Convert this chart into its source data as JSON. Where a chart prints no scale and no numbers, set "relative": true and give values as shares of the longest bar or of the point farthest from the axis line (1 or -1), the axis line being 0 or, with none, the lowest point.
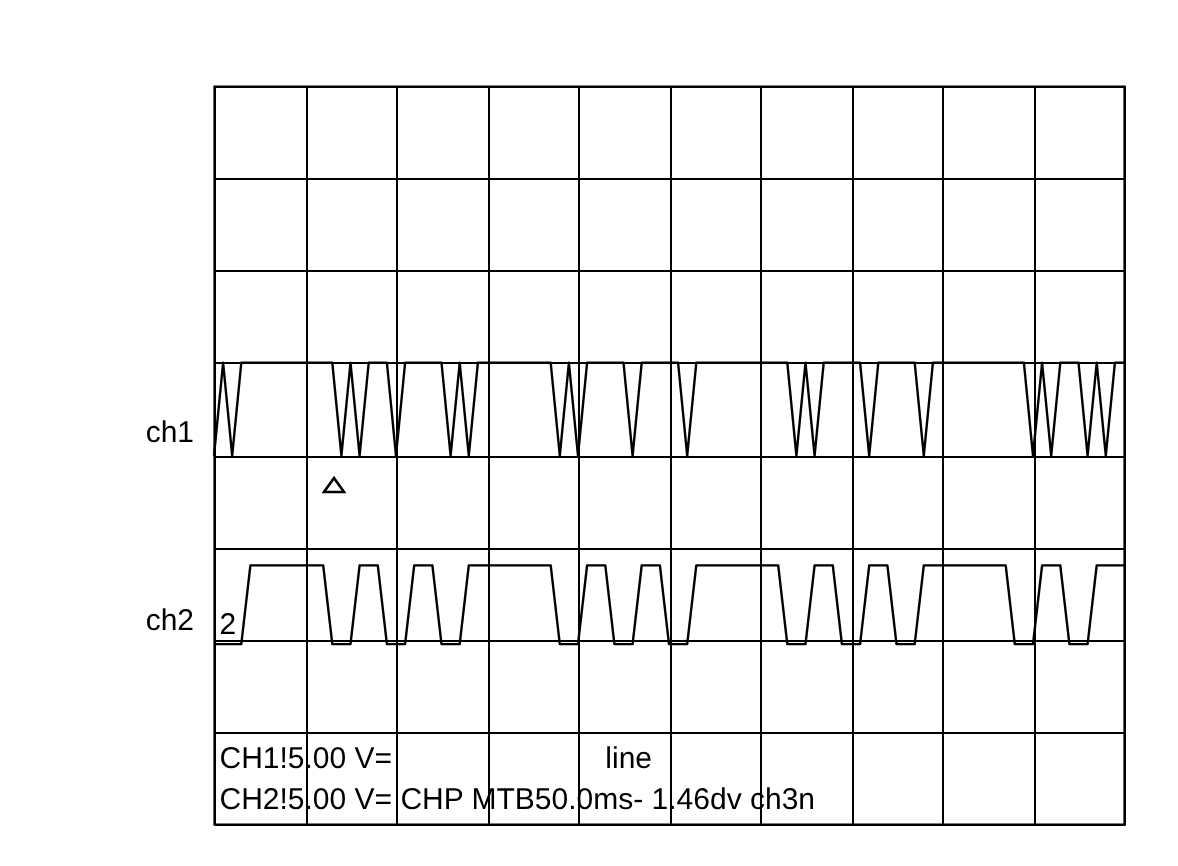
{
  "chart_data": {
    "type": "line",
    "relative": true,
    "grid": true,
    "categories": [
      null,
      null,
      null,
      null,
      null,
      null,
      null,
      null,
      null,
      null,
      null,
      null,
      null,
      null,
      null,
      null,
      null,
      null,
      null,
      null,
      null,
      null,
      null,
      null,
      null,
      null,
      null,
      null,
      null,
      null,
      null,
      null,
      null,
      null,
      null,
      null,
      null,
      null,
      null,
      null,
      null,
      null,
      null,
      null,
      null,
      null,
      null,
      null,
      null,
      null,
      null,
      null,
      null,
      null,
      null,
      null,
      null,
      null,
      null,
      null,
      null,
      null,
      null,
      null,
      null,
      null,
      null,
      null,
      null,
      null,
      null,
      null,
      null,
      null,
      null,
      null,
      null,
      null,
      null,
      null,
      null,
      null,
      null,
      null,
      null,
      null,
      null,
      null,
      null,
      null,
      null,
      null,
      null,
      null,
      null,
      null,
      null,
      null,
      null,
      null,
      null
    ],
    "series": [
      {
        "name": "ch1",
        "color": "#000000",
        "values": [
          0.67,
          1,
          0.67,
          1,
          1,
          1,
          1,
          1,
          1,
          1,
          1,
          1,
          1,
          1,
          0.67,
          1,
          0.67,
          1,
          1,
          1,
          0.67,
          1,
          1,
          1,
          1,
          1,
          0.67,
          1,
          0.67,
          1,
          1,
          1,
          1,
          1,
          1,
          1,
          1,
          1,
          0.67,
          1,
          0.67,
          1,
          1,
          1,
          1,
          1,
          0.67,
          1,
          1,
          1,
          1,
          1,
          0.67,
          1,
          1,
          1,
          1,
          1,
          1,
          1,
          1,
          1,
          1,
          1,
          0.67,
          1,
          0.67,
          1,
          1,
          1,
          1,
          1,
          0.67,
          1,
          1,
          1,
          1,
          1,
          0.67,
          1,
          1,
          1,
          1,
          1,
          1,
          1,
          1,
          1,
          1,
          1,
          0.67,
          1,
          0.67,
          1,
          1,
          1,
          0.67,
          1,
          0.67,
          1,
          1
        ]
      },
      {
        "name": "ch2",
        "color": "#000000",
        "values": [
          0,
          0,
          0,
          0,
          0.28,
          0.28,
          0.28,
          0.28,
          0.28,
          0.28,
          0.28,
          0.28,
          0.28,
          0,
          0,
          0,
          0.28,
          0.28,
          0.28,
          0,
          0,
          0,
          0.28,
          0.28,
          0.28,
          0,
          0,
          0,
          0.28,
          0.28,
          0.28,
          0.28,
          0.28,
          0.28,
          0.28,
          0.28,
          0.28,
          0.28,
          0,
          0,
          0,
          0.28,
          0.28,
          0.28,
          0,
          0,
          0,
          0.28,
          0.28,
          0.28,
          0,
          0,
          0,
          0.28,
          0.28,
          0.28,
          0.28,
          0.28,
          0.28,
          0.28,
          0.28,
          0.28,
          0.28,
          0,
          0,
          0,
          0.28,
          0.28,
          0.28,
          0,
          0,
          0,
          0.28,
          0.28,
          0.28,
          0,
          0,
          0,
          0.28,
          0.28,
          0.28,
          0.28,
          0.28,
          0.28,
          0.28,
          0.28,
          0.28,
          0.28,
          0,
          0,
          0,
          0.28,
          0.28,
          0.28,
          0,
          0,
          0,
          0.28,
          0.28,
          0.28,
          0.28
        ]
      }
    ],
    "annotations": [
      {
        "text": "2",
        "y": 0
      },
      "CH1!5.00 V=",
      "line",
      "CH2!5.00 V=  CHP MTB50.0ms- 1.46dv ch3n"
    ]
  }
}
